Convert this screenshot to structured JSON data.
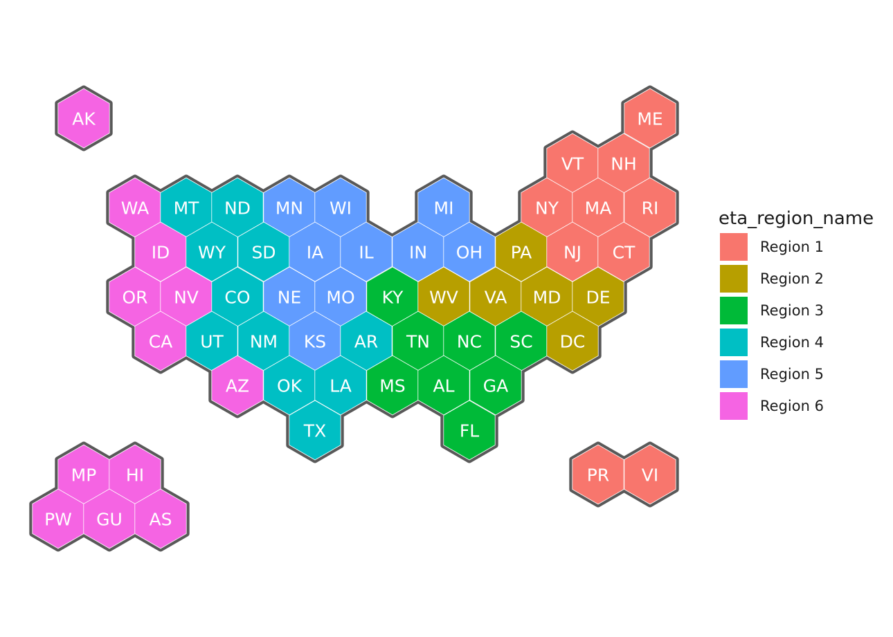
{
  "legend": {
    "title": "eta_region_name",
    "items": [
      {
        "key": "r1",
        "label": "Region 1",
        "color": "#F8766D"
      },
      {
        "key": "r2",
        "label": "Region 2",
        "color": "#B79F00"
      },
      {
        "key": "r3",
        "label": "Region 3",
        "color": "#00BA38"
      },
      {
        "key": "r4",
        "label": "Region 4",
        "color": "#00BFC4"
      },
      {
        "key": "r5",
        "label": "Region 5",
        "color": "#619CFF"
      },
      {
        "key": "r6",
        "label": "Region 6",
        "color": "#F564E3"
      }
    ]
  },
  "colors": {
    "outline": "#595959",
    "inner_border": "#ffffff",
    "label": "#ffffff"
  },
  "states": [
    {
      "name": "AK",
      "region": "r6"
    },
    {
      "name": "ME",
      "region": "r1"
    },
    {
      "name": "VT",
      "region": "r1"
    },
    {
      "name": "NH",
      "region": "r1"
    },
    {
      "name": "WA",
      "region": "r6"
    },
    {
      "name": "MT",
      "region": "r4"
    },
    {
      "name": "ND",
      "region": "r4"
    },
    {
      "name": "MN",
      "region": "r5"
    },
    {
      "name": "WI",
      "region": "r5"
    },
    {
      "name": "MI",
      "region": "r5"
    },
    {
      "name": "NY",
      "region": "r1"
    },
    {
      "name": "MA",
      "region": "r1"
    },
    {
      "name": "RI",
      "region": "r1"
    },
    {
      "name": "ID",
      "region": "r6"
    },
    {
      "name": "WY",
      "region": "r4"
    },
    {
      "name": "SD",
      "region": "r4"
    },
    {
      "name": "IA",
      "region": "r5"
    },
    {
      "name": "IL",
      "region": "r5"
    },
    {
      "name": "IN",
      "region": "r5"
    },
    {
      "name": "OH",
      "region": "r5"
    },
    {
      "name": "PA",
      "region": "r2"
    },
    {
      "name": "NJ",
      "region": "r1"
    },
    {
      "name": "CT",
      "region": "r1"
    },
    {
      "name": "OR",
      "region": "r6"
    },
    {
      "name": "NV",
      "region": "r6"
    },
    {
      "name": "CO",
      "region": "r4"
    },
    {
      "name": "NE",
      "region": "r5"
    },
    {
      "name": "MO",
      "region": "r5"
    },
    {
      "name": "KY",
      "region": "r3"
    },
    {
      "name": "WV",
      "region": "r2"
    },
    {
      "name": "VA",
      "region": "r2"
    },
    {
      "name": "MD",
      "region": "r2"
    },
    {
      "name": "DE",
      "region": "r2"
    },
    {
      "name": "CA",
      "region": "r6"
    },
    {
      "name": "UT",
      "region": "r4"
    },
    {
      "name": "NM",
      "region": "r4"
    },
    {
      "name": "KS",
      "region": "r5"
    },
    {
      "name": "AR",
      "region": "r4"
    },
    {
      "name": "TN",
      "region": "r3"
    },
    {
      "name": "NC",
      "region": "r3"
    },
    {
      "name": "SC",
      "region": "r3"
    },
    {
      "name": "DC",
      "region": "r2"
    },
    {
      "name": "AZ",
      "region": "r6"
    },
    {
      "name": "OK",
      "region": "r4"
    },
    {
      "name": "LA",
      "region": "r4"
    },
    {
      "name": "MS",
      "region": "r3"
    },
    {
      "name": "AL",
      "region": "r3"
    },
    {
      "name": "GA",
      "region": "r3"
    },
    {
      "name": "TX",
      "region": "r4"
    },
    {
      "name": "FL",
      "region": "r3"
    },
    {
      "name": "MP",
      "region": "r6"
    },
    {
      "name": "HI",
      "region": "r6"
    },
    {
      "name": "PR",
      "region": "r1"
    },
    {
      "name": "VI",
      "region": "r1"
    },
    {
      "name": "PW",
      "region": "r6"
    },
    {
      "name": "GU",
      "region": "r6"
    },
    {
      "name": "AS",
      "region": "r6"
    }
  ]
}
